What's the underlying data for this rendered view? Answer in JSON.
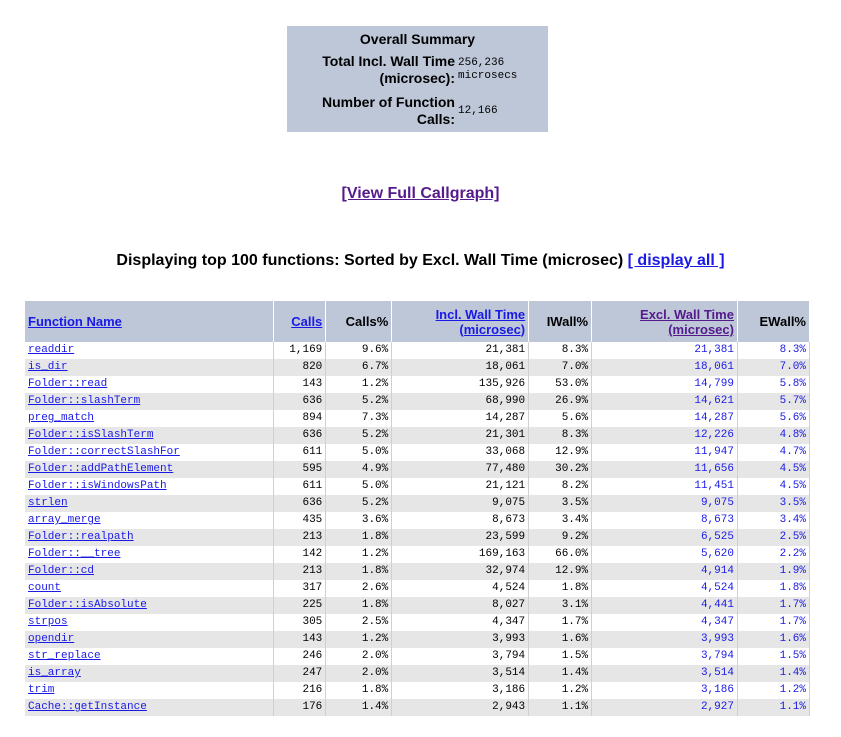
{
  "summary": {
    "title": "Overall Summary",
    "incl_wall_label_1": "Total Incl. Wall Time",
    "incl_wall_label_2": "(microsec):",
    "incl_wall_value_1": "256,236",
    "incl_wall_value_2": "microsecs",
    "calls_label_1": "Number of Function",
    "calls_label_2": "Calls:",
    "calls_value": "12,166"
  },
  "callgraph_link": "[View Full Callgraph]",
  "heading": {
    "text": "Displaying top 100 functions: Sorted by Excl. Wall Time (microsec)",
    "display_all": "[ display all ]"
  },
  "table": {
    "headers": {
      "function_name": "Function Name",
      "calls": "Calls",
      "calls_pct": "Calls%",
      "incl_wall_1": "Incl. Wall Time",
      "incl_wall_2": "(microsec)",
      "iwall_pct": "IWall%",
      "excl_wall_1": "Excl. Wall Time",
      "excl_wall_2": "(microsec)",
      "ewall_pct": "EWall%"
    },
    "rows": [
      {
        "name": "readdir",
        "calls": "1,169",
        "calls_pct": "9.6%",
        "incl": "21,381",
        "iwall": "8.3%",
        "excl": "21,381",
        "ewall": "8.3%"
      },
      {
        "name": "is_dir",
        "calls": "820",
        "calls_pct": "6.7%",
        "incl": "18,061",
        "iwall": "7.0%",
        "excl": "18,061",
        "ewall": "7.0%"
      },
      {
        "name": "Folder::read",
        "calls": "143",
        "calls_pct": "1.2%",
        "incl": "135,926",
        "iwall": "53.0%",
        "excl": "14,799",
        "ewall": "5.8%"
      },
      {
        "name": "Folder::slashTerm",
        "calls": "636",
        "calls_pct": "5.2%",
        "incl": "68,990",
        "iwall": "26.9%",
        "excl": "14,621",
        "ewall": "5.7%"
      },
      {
        "name": "preg_match",
        "calls": "894",
        "calls_pct": "7.3%",
        "incl": "14,287",
        "iwall": "5.6%",
        "excl": "14,287",
        "ewall": "5.6%"
      },
      {
        "name": "Folder::isSlashTerm",
        "calls": "636",
        "calls_pct": "5.2%",
        "incl": "21,301",
        "iwall": "8.3%",
        "excl": "12,226",
        "ewall": "4.8%"
      },
      {
        "name": "Folder::correctSlashFor",
        "calls": "611",
        "calls_pct": "5.0%",
        "incl": "33,068",
        "iwall": "12.9%",
        "excl": "11,947",
        "ewall": "4.7%"
      },
      {
        "name": "Folder::addPathElement",
        "calls": "595",
        "calls_pct": "4.9%",
        "incl": "77,480",
        "iwall": "30.2%",
        "excl": "11,656",
        "ewall": "4.5%"
      },
      {
        "name": "Folder::isWindowsPath",
        "calls": "611",
        "calls_pct": "5.0%",
        "incl": "21,121",
        "iwall": "8.2%",
        "excl": "11,451",
        "ewall": "4.5%"
      },
      {
        "name": "strlen",
        "calls": "636",
        "calls_pct": "5.2%",
        "incl": "9,075",
        "iwall": "3.5%",
        "excl": "9,075",
        "ewall": "3.5%"
      },
      {
        "name": "array_merge",
        "calls": "435",
        "calls_pct": "3.6%",
        "incl": "8,673",
        "iwall": "3.4%",
        "excl": "8,673",
        "ewall": "3.4%"
      },
      {
        "name": "Folder::realpath",
        "calls": "213",
        "calls_pct": "1.8%",
        "incl": "23,599",
        "iwall": "9.2%",
        "excl": "6,525",
        "ewall": "2.5%"
      },
      {
        "name": "Folder::__tree",
        "calls": "142",
        "calls_pct": "1.2%",
        "incl": "169,163",
        "iwall": "66.0%",
        "excl": "5,620",
        "ewall": "2.2%"
      },
      {
        "name": "Folder::cd",
        "calls": "213",
        "calls_pct": "1.8%",
        "incl": "32,974",
        "iwall": "12.9%",
        "excl": "4,914",
        "ewall": "1.9%"
      },
      {
        "name": "count",
        "calls": "317",
        "calls_pct": "2.6%",
        "incl": "4,524",
        "iwall": "1.8%",
        "excl": "4,524",
        "ewall": "1.8%"
      },
      {
        "name": "Folder::isAbsolute",
        "calls": "225",
        "calls_pct": "1.8%",
        "incl": "8,027",
        "iwall": "3.1%",
        "excl": "4,441",
        "ewall": "1.7%"
      },
      {
        "name": "strpos",
        "calls": "305",
        "calls_pct": "2.5%",
        "incl": "4,347",
        "iwall": "1.7%",
        "excl": "4,347",
        "ewall": "1.7%"
      },
      {
        "name": "opendir",
        "calls": "143",
        "calls_pct": "1.2%",
        "incl": "3,993",
        "iwall": "1.6%",
        "excl": "3,993",
        "ewall": "1.6%"
      },
      {
        "name": "str_replace",
        "calls": "246",
        "calls_pct": "2.0%",
        "incl": "3,794",
        "iwall": "1.5%",
        "excl": "3,794",
        "ewall": "1.5%"
      },
      {
        "name": "is_array",
        "calls": "247",
        "calls_pct": "2.0%",
        "incl": "3,514",
        "iwall": "1.4%",
        "excl": "3,514",
        "ewall": "1.4%"
      },
      {
        "name": "trim",
        "calls": "216",
        "calls_pct": "1.8%",
        "incl": "3,186",
        "iwall": "1.2%",
        "excl": "3,186",
        "ewall": "1.2%"
      },
      {
        "name": "Cache::getInstance",
        "calls": "176",
        "calls_pct": "1.4%",
        "incl": "2,943",
        "iwall": "1.1%",
        "excl": "2,927",
        "ewall": "1.1%"
      }
    ]
  }
}
